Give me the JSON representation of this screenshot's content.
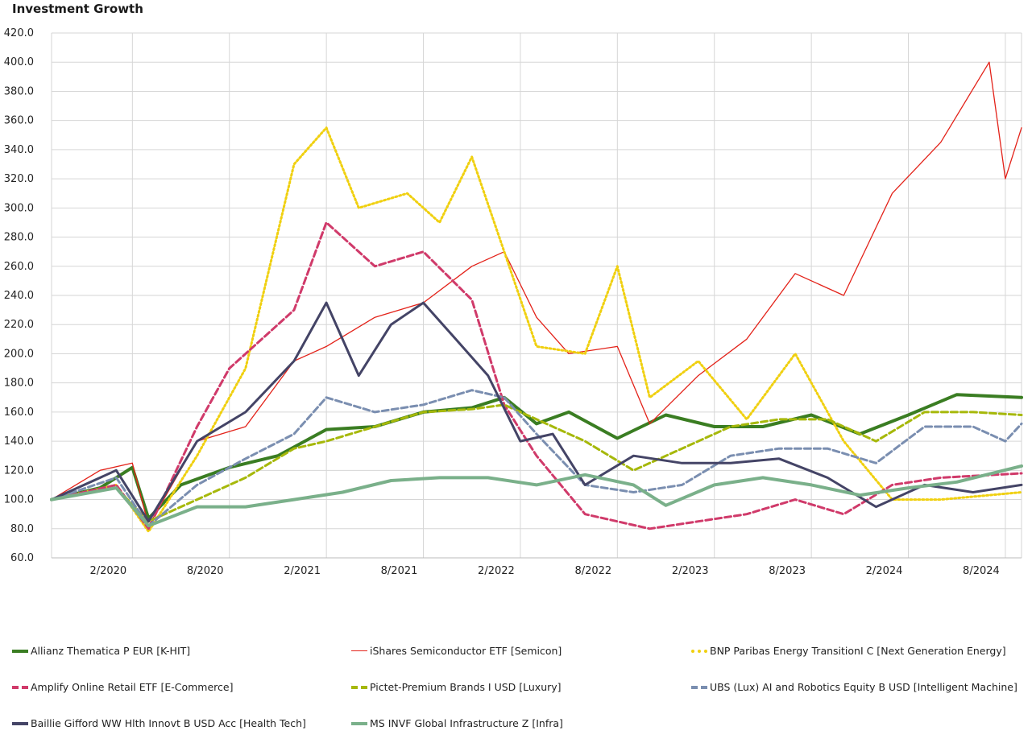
{
  "title": "Investment Growth",
  "chart_data": {
    "type": "line",
    "title": "Investment Growth",
    "xlabel": "",
    "ylabel": "",
    "ylim": [
      60,
      420
    ],
    "yticks": [
      "60.0",
      "80.0",
      "100.0",
      "120.0",
      "140.0",
      "160.0",
      "180.0",
      "200.0",
      "220.0",
      "240.0",
      "260.0",
      "280.0",
      "300.0",
      "320.0",
      "340.0",
      "360.0",
      "380.0",
      "400.0",
      "420.0"
    ],
    "xlim": [
      "2019-09",
      "2024-09"
    ],
    "xtick_labels": [
      "2/2020",
      "8/2020",
      "2/2021",
      "8/2021",
      "2/2022",
      "8/2022",
      "2/2023",
      "8/2023",
      "2/2024",
      "8/2024"
    ],
    "xtick_dates": [
      "2020-02",
      "2020-08",
      "2021-02",
      "2021-08",
      "2022-02",
      "2022-08",
      "2023-02",
      "2023-08",
      "2024-02",
      "2024-08"
    ],
    "grid": true,
    "legend_position": "bottom",
    "series": [
      {
        "name": "Allianz Thematica P EUR [K-HIT]",
        "color": "#3a7d22",
        "style": "solid",
        "width": 4,
        "x": [
          "2019-09",
          "2019-12",
          "2020-02",
          "2020-03",
          "2020-05",
          "2020-08",
          "2020-11",
          "2021-02",
          "2021-05",
          "2021-08",
          "2021-11",
          "2022-01",
          "2022-03",
          "2022-05",
          "2022-08",
          "2022-11",
          "2023-02",
          "2023-05",
          "2023-08",
          "2023-11",
          "2024-02",
          "2024-05",
          "2024-09"
        ],
        "y": [
          100,
          108,
          122,
          87,
          110,
          122,
          130,
          148,
          150,
          160,
          163,
          170,
          152,
          160,
          142,
          158,
          150,
          150,
          158,
          145,
          158,
          172,
          170
        ]
      },
      {
        "name": "iShares Semiconductor ETF [Semicon]",
        "color": "#e32219",
        "style": "solid",
        "width": 1.3,
        "x": [
          "2019-09",
          "2019-12",
          "2020-02",
          "2020-03",
          "2020-06",
          "2020-09",
          "2020-12",
          "2021-02",
          "2021-05",
          "2021-08",
          "2021-11",
          "2022-01",
          "2022-03",
          "2022-05",
          "2022-08",
          "2022-10",
          "2023-01",
          "2023-04",
          "2023-07",
          "2023-10",
          "2024-01",
          "2024-04",
          "2024-07",
          "2024-08",
          "2024-09"
        ],
        "y": [
          100,
          120,
          125,
          82,
          140,
          150,
          195,
          205,
          225,
          235,
          260,
          270,
          225,
          200,
          205,
          152,
          185,
          210,
          255,
          240,
          310,
          345,
          400,
          320,
          355
        ]
      },
      {
        "name": "BNP Paribas Energy TransitionI C [Next Generation Energy]",
        "color": "#f0d010",
        "style": "dot",
        "width": 3,
        "x": [
          "2019-09",
          "2020-01",
          "2020-03",
          "2020-06",
          "2020-09",
          "2020-12",
          "2021-02",
          "2021-04",
          "2021-07",
          "2021-09",
          "2021-11",
          "2022-01",
          "2022-03",
          "2022-06",
          "2022-08",
          "2022-10",
          "2023-01",
          "2023-04",
          "2023-07",
          "2023-10",
          "2024-01",
          "2024-04",
          "2024-09"
        ],
        "y": [
          100,
          110,
          78,
          130,
          190,
          330,
          355,
          300,
          310,
          290,
          335,
          270,
          205,
          200,
          260,
          170,
          195,
          155,
          200,
          140,
          100,
          100,
          105
        ]
      },
      {
        "name": "Amplify Online Retail ETF [E-Commerce]",
        "color": "#d03a6a",
        "style": "dash",
        "width": 3,
        "x": [
          "2019-09",
          "2020-01",
          "2020-03",
          "2020-06",
          "2020-08",
          "2020-12",
          "2021-02",
          "2021-05",
          "2021-08",
          "2021-11",
          "2022-01",
          "2022-03",
          "2022-06",
          "2022-10",
          "2023-01",
          "2023-04",
          "2023-07",
          "2023-10",
          "2024-01",
          "2024-04",
          "2024-09"
        ],
        "y": [
          100,
          110,
          80,
          150,
          190,
          230,
          290,
          260,
          270,
          237,
          165,
          130,
          90,
          80,
          85,
          90,
          100,
          90,
          110,
          115,
          118
        ]
      },
      {
        "name": "Pictet-Premium Brands I USD [Luxury]",
        "color": "#a6b80a",
        "style": "dash",
        "width": 3,
        "x": [
          "2019-09",
          "2020-01",
          "2020-03",
          "2020-06",
          "2020-09",
          "2020-12",
          "2021-02",
          "2021-05",
          "2021-08",
          "2021-11",
          "2022-01",
          "2022-03",
          "2022-06",
          "2022-09",
          "2022-12",
          "2023-03",
          "2023-06",
          "2023-09",
          "2023-12",
          "2024-03",
          "2024-06",
          "2024-09"
        ],
        "y": [
          100,
          108,
          85,
          100,
          115,
          135,
          140,
          150,
          160,
          162,
          165,
          155,
          140,
          120,
          135,
          150,
          155,
          155,
          140,
          160,
          160,
          158
        ]
      },
      {
        "name": "UBS (Lux) AI and Robotics Equity B USD [Intelligent Machine]",
        "color": "#7a8eb0",
        "style": "dash",
        "width": 3,
        "x": [
          "2019-09",
          "2020-01",
          "2020-03",
          "2020-06",
          "2020-09",
          "2020-12",
          "2021-02",
          "2021-05",
          "2021-08",
          "2021-11",
          "2022-01",
          "2022-03",
          "2022-06",
          "2022-09",
          "2022-12",
          "2023-03",
          "2023-06",
          "2023-09",
          "2023-12",
          "2024-03",
          "2024-06",
          "2024-08",
          "2024-09"
        ],
        "y": [
          100,
          115,
          82,
          110,
          128,
          145,
          170,
          160,
          165,
          175,
          170,
          145,
          110,
          105,
          110,
          130,
          135,
          135,
          125,
          150,
          150,
          140,
          152
        ]
      },
      {
        "name": "Baillie Gifford WW Hlth Innovt B USD Acc [Health Tech]",
        "color": "#444466",
        "style": "solid",
        "width": 3,
        "x": [
          "2019-09",
          "2020-01",
          "2020-03",
          "2020-06",
          "2020-09",
          "2020-12",
          "2021-02",
          "2021-04",
          "2021-06",
          "2021-08",
          "2021-10",
          "2021-12",
          "2022-02",
          "2022-04",
          "2022-06",
          "2022-09",
          "2022-12",
          "2023-03",
          "2023-06",
          "2023-09",
          "2023-12",
          "2024-03",
          "2024-06",
          "2024-09"
        ],
        "y": [
          100,
          120,
          85,
          140,
          160,
          195,
          235,
          185,
          220,
          235,
          210,
          185,
          140,
          145,
          110,
          130,
          125,
          125,
          128,
          115,
          95,
          110,
          105,
          110
        ]
      },
      {
        "name": "MS INVF Global Infrastructure Z [Infra]",
        "color": "#7ab08a",
        "style": "solid",
        "width": 4,
        "x": [
          "2019-09",
          "2020-01",
          "2020-03",
          "2020-06",
          "2020-09",
          "2020-12",
          "2021-03",
          "2021-06",
          "2021-09",
          "2021-12",
          "2022-03",
          "2022-06",
          "2022-09",
          "2022-11",
          "2023-02",
          "2023-05",
          "2023-08",
          "2023-11",
          "2024-02",
          "2024-05",
          "2024-09"
        ],
        "y": [
          100,
          108,
          82,
          95,
          95,
          100,
          105,
          113,
          115,
          115,
          110,
          117,
          110,
          96,
          110,
          115,
          110,
          103,
          108,
          112,
          123
        ]
      }
    ]
  }
}
